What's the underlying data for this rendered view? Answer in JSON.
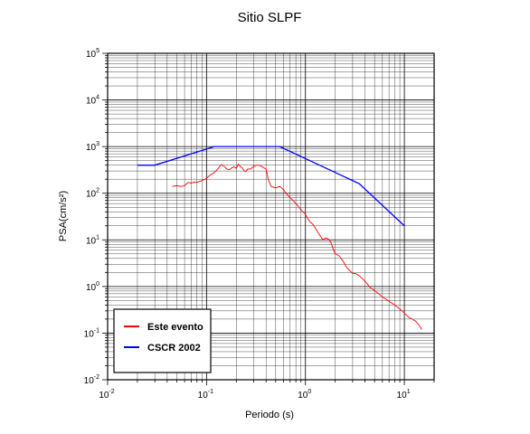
{
  "chart_data": {
    "type": "line",
    "title": "Sitio SLPF",
    "xlabel": "Periodo (s)",
    "ylabel": "PSA(cm/s²)",
    "x_scale": "log",
    "y_scale": "log",
    "xlim": [
      0.01,
      20
    ],
    "ylim": [
      0.01,
      100000
    ],
    "x_ticks": [
      {
        "value": 0.01,
        "base": "10",
        "exp": "-2"
      },
      {
        "value": 0.1,
        "base": "10",
        "exp": "-1"
      },
      {
        "value": 1,
        "base": "10",
        "exp": "0"
      },
      {
        "value": 10,
        "base": "10",
        "exp": "1"
      }
    ],
    "y_ticks": [
      {
        "value": 0.01,
        "base": "10",
        "exp": "-2"
      },
      {
        "value": 0.1,
        "base": "10",
        "exp": "-1"
      },
      {
        "value": 1,
        "base": "10",
        "exp": "0"
      },
      {
        "value": 10,
        "base": "10",
        "exp": "1"
      },
      {
        "value": 100,
        "base": "10",
        "exp": "2"
      },
      {
        "value": 1000,
        "base": "10",
        "exp": "3"
      },
      {
        "value": 10000,
        "base": "10",
        "exp": "4"
      },
      {
        "value": 100000,
        "base": "10",
        "exp": "5"
      }
    ],
    "grid": true,
    "legend_position": "bottom-left",
    "series": [
      {
        "name": "Este evento",
        "color": "#ff0000",
        "x": [
          0.045,
          0.05,
          0.055,
          0.06,
          0.065,
          0.07,
          0.075,
          0.08,
          0.085,
          0.09,
          0.1,
          0.11,
          0.12,
          0.13,
          0.14,
          0.15,
          0.16,
          0.17,
          0.18,
          0.19,
          0.2,
          0.21,
          0.22,
          0.23,
          0.24,
          0.25,
          0.26,
          0.28,
          0.3,
          0.32,
          0.35,
          0.38,
          0.4,
          0.42,
          0.45,
          0.5,
          0.55,
          0.6,
          0.65,
          0.7,
          0.75,
          0.8,
          0.85,
          0.9,
          1.0,
          1.1,
          1.2,
          1.3,
          1.4,
          1.5,
          1.6,
          1.7,
          1.8,
          1.9,
          2.0,
          2.1,
          2.2,
          2.4,
          2.6,
          2.8,
          3.0,
          3.2,
          3.5,
          4.0,
          4.5,
          5.0,
          6.0,
          7.0,
          8.0,
          9.0,
          10.0,
          11.0,
          12.0,
          13.0,
          14.0,
          15.0
        ],
        "y": [
          140,
          145,
          140,
          145,
          170,
          165,
          175,
          170,
          180,
          185,
          210,
          250,
          280,
          330,
          410,
          380,
          330,
          320,
          350,
          370,
          340,
          420,
          370,
          350,
          300,
          290,
          330,
          330,
          380,
          400,
          390,
          350,
          330,
          200,
          140,
          130,
          140,
          120,
          95,
          80,
          70,
          60,
          52,
          44,
          35,
          25,
          21,
          16,
          12.5,
          10,
          11,
          10.5,
          9,
          6.5,
          5,
          4.8,
          4.5,
          3.5,
          2.6,
          2.2,
          1.9,
          1.9,
          1.7,
          1.3,
          0.95,
          0.82,
          0.6,
          0.48,
          0.4,
          0.33,
          0.27,
          0.22,
          0.2,
          0.18,
          0.15,
          0.12
        ]
      },
      {
        "name": "CSCR 2002",
        "color": "#0000ff",
        "x": [
          0.02,
          0.03,
          0.12,
          0.55,
          3.5,
          10
        ],
        "y": [
          400,
          400,
          1000,
          1000,
          160,
          20
        ]
      }
    ]
  }
}
